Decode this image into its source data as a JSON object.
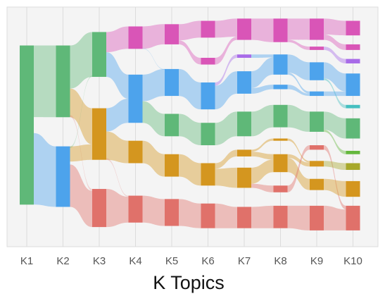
{
  "chart_data": {
    "type": "alluvial",
    "xlabel": "K Topics",
    "ylabel": "",
    "categories": [
      "K1",
      "K2",
      "K3",
      "K4",
      "K5",
      "K6",
      "K7",
      "K8",
      "K9",
      "K10"
    ],
    "grid": true,
    "legend": "none",
    "colors": {
      "green": "#5fb878",
      "blue": "#4da3ec",
      "orange": "#d4961f",
      "red": "#e0716a",
      "magenta": "#d955b7",
      "purple": "#a86be8",
      "teal": "#45bfc0",
      "lime": "#64b83d",
      "olive": "#a7a82a",
      "panel": "#f4f4f4",
      "gridline": "#dcdcdc"
    },
    "nodes": [
      {
        "id": "k1a",
        "k": 1,
        "color": "green",
        "top": 0.14,
        "bottom": 0.85
      },
      {
        "id": "k2a",
        "k": 2,
        "color": "green",
        "top": 0.14,
        "bottom": 0.46
      },
      {
        "id": "k2b",
        "k": 2,
        "color": "blue",
        "top": 0.59,
        "bottom": 0.86
      },
      {
        "id": "k3a",
        "k": 3,
        "color": "green",
        "top": 0.08,
        "bottom": 0.28
      },
      {
        "id": "k3b",
        "k": 3,
        "color": "orange",
        "top": 0.42,
        "bottom": 0.65
      },
      {
        "id": "k3c",
        "k": 3,
        "color": "red",
        "top": 0.78,
        "bottom": 0.95
      },
      {
        "id": "k4a",
        "k": 4,
        "color": "magenta",
        "top": 0.055,
        "bottom": 0.155
      },
      {
        "id": "k4b",
        "k": 4,
        "color": "blue",
        "top": 0.27,
        "bottom": 0.485
      },
      {
        "id": "k4c",
        "k": 4,
        "color": "orange",
        "top": 0.565,
        "bottom": 0.665
      },
      {
        "id": "k4d",
        "k": 4,
        "color": "red",
        "top": 0.81,
        "bottom": 0.93
      },
      {
        "id": "k5a",
        "k": 5,
        "color": "magenta",
        "top": 0.045,
        "bottom": 0.135
      },
      {
        "id": "k5b",
        "k": 5,
        "color": "blue",
        "top": 0.245,
        "bottom": 0.365
      },
      {
        "id": "k5c",
        "k": 5,
        "color": "green",
        "top": 0.445,
        "bottom": 0.545
      },
      {
        "id": "k5d",
        "k": 5,
        "color": "orange",
        "top": 0.625,
        "bottom": 0.725
      },
      {
        "id": "k5e",
        "k": 5,
        "color": "red",
        "top": 0.825,
        "bottom": 0.945
      },
      {
        "id": "k6a",
        "k": 6,
        "color": "magenta",
        "top": 0.03,
        "bottom": 0.105
      },
      {
        "id": "k6b",
        "k": 6,
        "color": "magenta",
        "top": 0.195,
        "bottom": 0.225
      },
      {
        "id": "k6c",
        "k": 6,
        "color": "blue",
        "top": 0.305,
        "bottom": 0.425
      },
      {
        "id": "k6d",
        "k": 6,
        "color": "green",
        "top": 0.485,
        "bottom": 0.585
      },
      {
        "id": "k6e",
        "k": 6,
        "color": "orange",
        "top": 0.665,
        "bottom": 0.765
      },
      {
        "id": "k6f",
        "k": 6,
        "color": "red",
        "top": 0.845,
        "bottom": 0.955
      },
      {
        "id": "k7a",
        "k": 7,
        "color": "magenta",
        "top": 0.02,
        "bottom": 0.115
      },
      {
        "id": "k7b",
        "k": 7,
        "color": "purple",
        "top": 0.18,
        "bottom": 0.195
      },
      {
        "id": "k7c",
        "k": 7,
        "color": "blue",
        "top": 0.255,
        "bottom": 0.355
      },
      {
        "id": "k7d",
        "k": 7,
        "color": "green",
        "top": 0.435,
        "bottom": 0.545
      },
      {
        "id": "k7e",
        "k": 7,
        "color": "orange",
        "top": 0.605,
        "bottom": 0.635
      },
      {
        "id": "k7f",
        "k": 7,
        "color": "orange",
        "top": 0.685,
        "bottom": 0.775
      },
      {
        "id": "k7g",
        "k": 7,
        "color": "red",
        "top": 0.86,
        "bottom": 0.955
      },
      {
        "id": "k8a",
        "k": 8,
        "color": "magenta",
        "top": 0.02,
        "bottom": 0.125
      },
      {
        "id": "k8b",
        "k": 8,
        "color": "blue",
        "top": 0.18,
        "bottom": 0.27
      },
      {
        "id": "k8c",
        "k": 8,
        "color": "blue",
        "top": 0.315,
        "bottom": 0.335
      },
      {
        "id": "k8d",
        "k": 8,
        "color": "green",
        "top": 0.405,
        "bottom": 0.505
      },
      {
        "id": "k8e",
        "k": 8,
        "color": "orange",
        "top": 0.555,
        "bottom": 0.565
      },
      {
        "id": "k8f",
        "k": 8,
        "color": "orange",
        "top": 0.625,
        "bottom": 0.705
      },
      {
        "id": "k8g",
        "k": 8,
        "color": "red",
        "top": 0.765,
        "bottom": 0.795
      },
      {
        "id": "k8h",
        "k": 8,
        "color": "red",
        "top": 0.855,
        "bottom": 0.955
      },
      {
        "id": "k9a",
        "k": 9,
        "color": "magenta",
        "top": 0.02,
        "bottom": 0.115
      },
      {
        "id": "k9b",
        "k": 9,
        "color": "magenta",
        "top": 0.145,
        "bottom": 0.16
      },
      {
        "id": "k9c",
        "k": 9,
        "color": "blue",
        "top": 0.215,
        "bottom": 0.295
      },
      {
        "id": "k9d",
        "k": 9,
        "color": "blue",
        "top": 0.345,
        "bottom": 0.365
      },
      {
        "id": "k9e",
        "k": 9,
        "color": "green",
        "top": 0.435,
        "bottom": 0.525
      },
      {
        "id": "k9f",
        "k": 9,
        "color": "red",
        "top": 0.585,
        "bottom": 0.605
      },
      {
        "id": "k9g",
        "k": 9,
        "color": "orange",
        "top": 0.655,
        "bottom": 0.68
      },
      {
        "id": "k9h",
        "k": 9,
        "color": "orange",
        "top": 0.735,
        "bottom": 0.785
      },
      {
        "id": "k9i",
        "k": 9,
        "color": "red",
        "top": 0.855,
        "bottom": 0.965
      },
      {
        "id": "k10a",
        "k": 10,
        "color": "magenta",
        "top": 0.03,
        "bottom": 0.095
      },
      {
        "id": "k10b",
        "k": 10,
        "color": "magenta",
        "top": 0.135,
        "bottom": 0.16
      },
      {
        "id": "k10c",
        "k": 10,
        "color": "purple",
        "top": 0.2,
        "bottom": 0.22
      },
      {
        "id": "k10d",
        "k": 10,
        "color": "blue",
        "top": 0.265,
        "bottom": 0.365
      },
      {
        "id": "k10e",
        "k": 10,
        "color": "teal",
        "top": 0.405,
        "bottom": 0.42
      },
      {
        "id": "k10f",
        "k": 10,
        "color": "green",
        "top": 0.465,
        "bottom": 0.555
      },
      {
        "id": "k10g",
        "k": 10,
        "color": "lime",
        "top": 0.61,
        "bottom": 0.625
      },
      {
        "id": "k10h",
        "k": 10,
        "color": "olive",
        "top": 0.665,
        "bottom": 0.695
      },
      {
        "id": "k10i",
        "k": 10,
        "color": "orange",
        "top": 0.745,
        "bottom": 0.815
      },
      {
        "id": "k10j",
        "k": 10,
        "color": "red",
        "top": 0.855,
        "bottom": 0.965
      }
    ],
    "flows": [
      {
        "from": "k1a",
        "to": "k2a",
        "sf": 0.0,
        "st": 0.45,
        "tf": 0.0,
        "tt": 1.0
      },
      {
        "from": "k1a",
        "to": "k2b",
        "sf": 0.55,
        "st": 1.0,
        "tf": 0.0,
        "tt": 1.0
      },
      {
        "from": "k2a",
        "to": "k3a",
        "sf": 0.0,
        "st": 0.6,
        "tf": 0.0,
        "tt": 1.0
      },
      {
        "from": "k2a",
        "to": "k3b",
        "sf": 0.6,
        "st": 1.0,
        "tf": 0.0,
        "tt": 0.7
      },
      {
        "from": "k2a",
        "to": "k3c",
        "sf": 0.97,
        "st": 1.0,
        "tf": 0.0,
        "tt": 0.05,
        "faint": true
      },
      {
        "from": "k2b",
        "to": "k3b",
        "sf": 0.0,
        "st": 0.25,
        "tf": 0.7,
        "tt": 1.0
      },
      {
        "from": "k2b",
        "to": "k3c",
        "sf": 0.3,
        "st": 1.0,
        "tf": 0.05,
        "tt": 1.0
      },
      {
        "from": "k2b",
        "to": "k3a",
        "sf": 0.0,
        "st": 0.03,
        "tf": 0.97,
        "tt": 1.0,
        "faint": true
      },
      {
        "from": "k3a",
        "to": "k4a",
        "sf": 0.0,
        "st": 0.45,
        "tf": 0.0,
        "tt": 1.0
      },
      {
        "from": "k3a",
        "to": "k4b",
        "sf": 0.45,
        "st": 1.0,
        "tf": 0.0,
        "tt": 0.5
      },
      {
        "from": "k3b",
        "to": "k4b",
        "sf": 0.0,
        "st": 0.45,
        "tf": 0.5,
        "tt": 1.0
      },
      {
        "from": "k3b",
        "to": "k4c",
        "sf": 0.45,
        "st": 1.0,
        "tf": 0.0,
        "tt": 1.0
      },
      {
        "from": "k3b",
        "to": "k4d",
        "sf": 0.97,
        "st": 1.0,
        "tf": 0.0,
        "tt": 0.04,
        "faint": true
      },
      {
        "from": "k3c",
        "to": "k4d",
        "sf": 0.0,
        "st": 1.0,
        "tf": 0.04,
        "tt": 1.0
      },
      {
        "from": "k4a",
        "to": "k5a",
        "sf": 0.0,
        "st": 1.0,
        "tf": 0.0,
        "tt": 1.0
      },
      {
        "from": "k4b",
        "to": "k5b",
        "sf": 0.0,
        "st": 0.55,
        "tf": 0.0,
        "tt": 1.0
      },
      {
        "from": "k4b",
        "to": "k5c",
        "sf": 0.55,
        "st": 1.0,
        "tf": 0.0,
        "tt": 1.0
      },
      {
        "from": "k4c",
        "to": "k5d",
        "sf": 0.0,
        "st": 1.0,
        "tf": 0.0,
        "tt": 1.0
      },
      {
        "from": "k4d",
        "to": "k5e",
        "sf": 0.0,
        "st": 1.0,
        "tf": 0.0,
        "tt": 1.0
      },
      {
        "from": "k4a",
        "to": "k5b",
        "sf": 0.97,
        "st": 1.0,
        "tf": 0.0,
        "tt": 0.03,
        "faint": true
      },
      {
        "from": "k5a",
        "to": "k6a",
        "sf": 0.0,
        "st": 0.8,
        "tf": 0.0,
        "tt": 1.0
      },
      {
        "from": "k5a",
        "to": "k6b",
        "sf": 0.8,
        "st": 1.0,
        "tf": 0.0,
        "tt": 1.0
      },
      {
        "from": "k5b",
        "to": "k6c",
        "sf": 0.0,
        "st": 1.0,
        "tf": 0.0,
        "tt": 1.0
      },
      {
        "from": "k5c",
        "to": "k6d",
        "sf": 0.0,
        "st": 1.0,
        "tf": 0.0,
        "tt": 1.0
      },
      {
        "from": "k5d",
        "to": "k6e",
        "sf": 0.0,
        "st": 1.0,
        "tf": 0.0,
        "tt": 1.0
      },
      {
        "from": "k5e",
        "to": "k6f",
        "sf": 0.0,
        "st": 1.0,
        "tf": 0.0,
        "tt": 1.0
      },
      {
        "from": "k6a",
        "to": "k7a",
        "sf": 0.0,
        "st": 1.0,
        "tf": 0.0,
        "tt": 0.85
      },
      {
        "from": "k6b",
        "to": "k7a",
        "sf": 0.0,
        "st": 1.0,
        "tf": 0.85,
        "tt": 1.0
      },
      {
        "from": "k6c",
        "to": "k7b",
        "sf": 0.0,
        "st": 0.12,
        "tf": 0.0,
        "tt": 1.0
      },
      {
        "from": "k6c",
        "to": "k7c",
        "sf": 0.12,
        "st": 1.0,
        "tf": 0.0,
        "tt": 1.0
      },
      {
        "from": "k6d",
        "to": "k7d",
        "sf": 0.0,
        "st": 1.0,
        "tf": 0.0,
        "tt": 1.0
      },
      {
        "from": "k6e",
        "to": "k7e",
        "sf": 0.0,
        "st": 0.25,
        "tf": 0.0,
        "tt": 1.0
      },
      {
        "from": "k6e",
        "to": "k7f",
        "sf": 0.25,
        "st": 1.0,
        "tf": 0.0,
        "tt": 1.0
      },
      {
        "from": "k6f",
        "to": "k7g",
        "sf": 0.0,
        "st": 1.0,
        "tf": 0.0,
        "tt": 1.0
      },
      {
        "from": "k7a",
        "to": "k8a",
        "sf": 0.0,
        "st": 1.0,
        "tf": 0.0,
        "tt": 1.0
      },
      {
        "from": "k7b",
        "to": "k8b",
        "sf": 0.0,
        "st": 1.0,
        "tf": 0.0,
        "tt": 0.15
      },
      {
        "from": "k7c",
        "to": "k8b",
        "sf": 0.0,
        "st": 0.75,
        "tf": 0.15,
        "tt": 1.0
      },
      {
        "from": "k7c",
        "to": "k8c",
        "sf": 0.75,
        "st": 1.0,
        "tf": 0.0,
        "tt": 1.0
      },
      {
        "from": "k7d",
        "to": "k8d",
        "sf": 0.0,
        "st": 1.0,
        "tf": 0.0,
        "tt": 1.0
      },
      {
        "from": "k7e",
        "to": "k8e",
        "sf": 0.0,
        "st": 0.3,
        "tf": 0.0,
        "tt": 1.0
      },
      {
        "from": "k7e",
        "to": "k8f",
        "sf": 0.3,
        "st": 1.0,
        "tf": 0.0,
        "tt": 0.3
      },
      {
        "from": "k7f",
        "to": "k8f",
        "sf": 0.0,
        "st": 0.8,
        "tf": 0.3,
        "tt": 1.0
      },
      {
        "from": "k7f",
        "to": "k8g",
        "sf": 0.8,
        "st": 1.0,
        "tf": 0.0,
        "tt": 1.0
      },
      {
        "from": "k7g",
        "to": "k8h",
        "sf": 0.0,
        "st": 1.0,
        "tf": 0.0,
        "tt": 1.0
      },
      {
        "from": "k8a",
        "to": "k9a",
        "sf": 0.0,
        "st": 0.9,
        "tf": 0.0,
        "tt": 1.0
      },
      {
        "from": "k8a",
        "to": "k9b",
        "sf": 0.9,
        "st": 1.0,
        "tf": 0.0,
        "tt": 1.0
      },
      {
        "from": "k8b",
        "to": "k9c",
        "sf": 0.0,
        "st": 0.9,
        "tf": 0.0,
        "tt": 1.0
      },
      {
        "from": "k8b",
        "to": "k9d",
        "sf": 0.9,
        "st": 1.0,
        "tf": 0.0,
        "tt": 0.5
      },
      {
        "from": "k8c",
        "to": "k9d",
        "sf": 0.0,
        "st": 1.0,
        "tf": 0.5,
        "tt": 1.0
      },
      {
        "from": "k8d",
        "to": "k9e",
        "sf": 0.0,
        "st": 1.0,
        "tf": 0.0,
        "tt": 1.0
      },
      {
        "from": "k8e",
        "to": "k9g",
        "sf": 0.0,
        "st": 1.0,
        "tf": 0.0,
        "tt": 0.3
      },
      {
        "from": "k8f",
        "to": "k9g",
        "sf": 0.0,
        "st": 0.2,
        "tf": 0.3,
        "tt": 1.0
      },
      {
        "from": "k8f",
        "to": "k9h",
        "sf": 0.2,
        "st": 1.0,
        "tf": 0.0,
        "tt": 1.0
      },
      {
        "from": "k8g",
        "to": "k9f",
        "sf": 0.0,
        "st": 1.0,
        "tf": 0.0,
        "tt": 1.0
      },
      {
        "from": "k8h",
        "to": "k9i",
        "sf": 0.0,
        "st": 1.0,
        "tf": 0.0,
        "tt": 1.0
      },
      {
        "from": "k9a",
        "to": "k10a",
        "sf": 0.0,
        "st": 0.75,
        "tf": 0.0,
        "tt": 1.0
      },
      {
        "from": "k9a",
        "to": "k10b",
        "sf": 0.75,
        "st": 1.0,
        "tf": 0.0,
        "tt": 1.0
      },
      {
        "from": "k9b",
        "to": "k10c",
        "sf": 0.0,
        "st": 1.0,
        "tf": 0.0,
        "tt": 1.0
      },
      {
        "from": "k9c",
        "to": "k10d",
        "sf": 0.0,
        "st": 0.9,
        "tf": 0.0,
        "tt": 0.8
      },
      {
        "from": "k9c",
        "to": "k10e",
        "sf": 0.9,
        "st": 1.0,
        "tf": 0.0,
        "tt": 1.0
      },
      {
        "from": "k9d",
        "to": "k10d",
        "sf": 0.0,
        "st": 1.0,
        "tf": 0.8,
        "tt": 1.0
      },
      {
        "from": "k9e",
        "to": "k10f",
        "sf": 0.0,
        "st": 0.9,
        "tf": 0.0,
        "tt": 1.0
      },
      {
        "from": "k9e",
        "to": "k10g",
        "sf": 0.9,
        "st": 1.0,
        "tf": 0.0,
        "tt": 1.0
      },
      {
        "from": "k9f",
        "to": "k10j",
        "sf": 0.0,
        "st": 1.0,
        "tf": 0.0,
        "tt": 0.15
      },
      {
        "from": "k9g",
        "to": "k10h",
        "sf": 0.0,
        "st": 1.0,
        "tf": 0.0,
        "tt": 1.0
      },
      {
        "from": "k9h",
        "to": "k10i",
        "sf": 0.0,
        "st": 1.0,
        "tf": 0.0,
        "tt": 1.0
      },
      {
        "from": "k9i",
        "to": "k10j",
        "sf": 0.0,
        "st": 1.0,
        "tf": 0.15,
        "tt": 1.0
      }
    ]
  }
}
